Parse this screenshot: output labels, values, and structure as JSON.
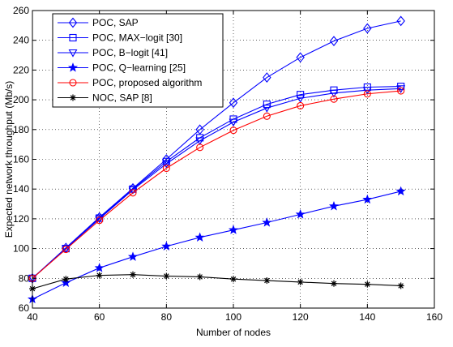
{
  "chart_data": {
    "type": "line",
    "xlabel": "Number of nodes",
    "ylabel": "Expected network throughput (Mb/s)",
    "xlim": [
      40,
      160
    ],
    "ylim": [
      60,
      260
    ],
    "xticks": [
      40,
      60,
      80,
      100,
      120,
      140,
      160
    ],
    "yticks": [
      60,
      80,
      100,
      120,
      140,
      160,
      180,
      200,
      220,
      240,
      260
    ],
    "grid": true,
    "legend_position": "top-left",
    "x": [
      40,
      50,
      60,
      70,
      80,
      90,
      100,
      110,
      120,
      130,
      140,
      150
    ],
    "series": [
      {
        "name": "POC, SAP",
        "color": "#0000ff",
        "marker": "diamond",
        "values": [
          80,
          100.5,
          121,
          140.5,
          160,
          180,
          198,
          215,
          228.5,
          239.5,
          248,
          253
        ]
      },
      {
        "name": "POC, MAX−logit [30]",
        "color": "#0000ff",
        "marker": "square",
        "values": [
          80,
          100,
          120.5,
          140,
          158.5,
          174.5,
          187,
          197,
          203.5,
          206.5,
          208.5,
          209
        ]
      },
      {
        "name": "POC, B−logit [41]",
        "color": "#0000ff",
        "marker": "triangle-down",
        "values": [
          80,
          100,
          120,
          139.5,
          157,
          172.5,
          185,
          194.5,
          201,
          204.5,
          206.5,
          207.5
        ]
      },
      {
        "name": "POC, Q−learning [25]",
        "color": "#0000ff",
        "marker": "star",
        "values": [
          66,
          77,
          87,
          94.5,
          101.5,
          107.5,
          112.5,
          117.5,
          123,
          128.5,
          133,
          138.5
        ]
      },
      {
        "name": "POC, proposed algorithm",
        "color": "#ff0000",
        "marker": "circle",
        "values": [
          80,
          99.5,
          119,
          137.5,
          154,
          168,
          179.5,
          189,
          196,
          200.5,
          204,
          206
        ]
      },
      {
        "name": "NOC, SAP [8]",
        "color": "#000000",
        "marker": "asterisk",
        "values": [
          73,
          79.5,
          82,
          82.5,
          81.5,
          81,
          79.5,
          78.5,
          77.5,
          76.5,
          76,
          75
        ]
      }
    ]
  }
}
